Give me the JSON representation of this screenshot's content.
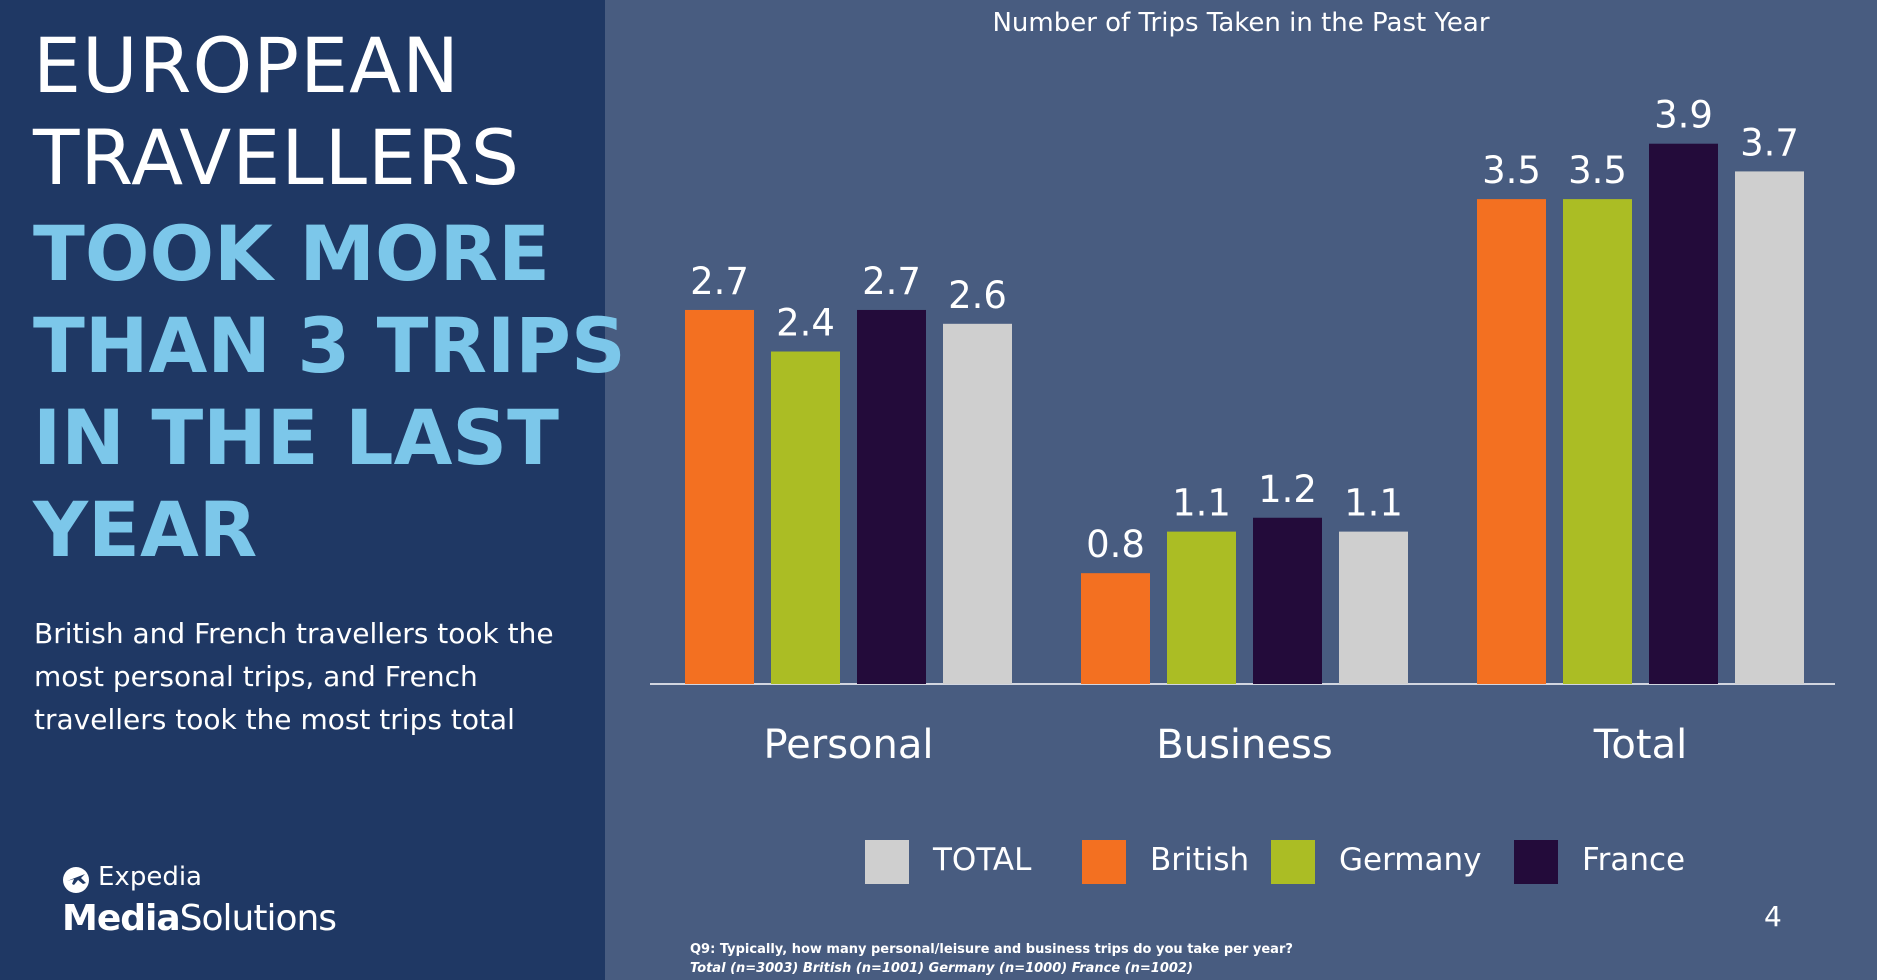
{
  "headline": {
    "line1": "EUROPEAN",
    "line2": "TRAVELLERS",
    "line3": "TOOK MORE",
    "line4": "THAN 3 TRIPS",
    "line5": "IN THE LAST",
    "line6": "YEAR"
  },
  "summary": "British and French travellers took the most personal trips, and French travellers took the most trips total",
  "logo": {
    "line1": "Expedia",
    "line2_bold": "Media",
    "line2_rest": "Solutions",
    "icon": "plane-globe-icon"
  },
  "page_number": "4",
  "footnote": {
    "question": "Q9: Typically, how many personal/leisure and business trips do you take per year?",
    "sample": "Total (n=3003) British (n=1001) Germany (n=1000) France (n=1002)"
  },
  "colors": {
    "British": "#f37021",
    "Germany": "#abbd24",
    "France": "#230b3a",
    "TOTAL": "#cfcfcf",
    "panel": "#1f3864",
    "background": "#485c80",
    "headline_accent": "#7cc7ea"
  },
  "chart_data": {
    "type": "bar",
    "title": "Number of Trips Taken in the Past Year",
    "categories": [
      "Personal",
      "Business",
      "Total"
    ],
    "series": [
      {
        "name": "British",
        "values": [
          2.7,
          0.8,
          3.5
        ]
      },
      {
        "name": "Germany",
        "values": [
          2.4,
          1.1,
          3.5
        ]
      },
      {
        "name": "France",
        "values": [
          2.7,
          1.2,
          3.9
        ]
      },
      {
        "name": "TOTAL",
        "values": [
          2.6,
          1.1,
          3.7
        ]
      }
    ],
    "legend_order": [
      "TOTAL",
      "British",
      "Germany",
      "France"
    ],
    "legend_position": "bottom",
    "ylim": [
      0,
      4.1
    ],
    "grid": false,
    "data_labels": true
  }
}
